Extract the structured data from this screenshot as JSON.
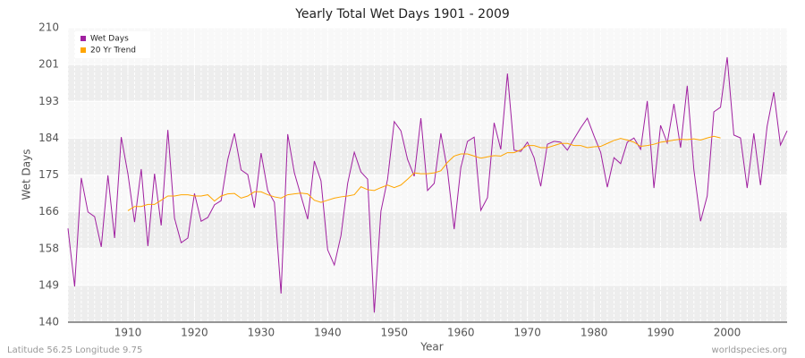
{
  "chart_data": {
    "type": "line",
    "title": "Yearly Total Wet Days 1901 - 2009",
    "xlabel": "Year",
    "ylabel": "Wet Days",
    "footer_left": "Latitude 56.25 Longitude 9.75",
    "footer_right": "worldspecies.org",
    "xlim": [
      1901,
      2009
    ],
    "ylim": [
      140,
      210
    ],
    "xticks": [
      1910,
      1920,
      1930,
      1940,
      1950,
      1960,
      1970,
      1980,
      1990,
      2000
    ],
    "yticks": [
      140,
      {
        "value": 148.75,
        "label": "149"
      },
      {
        "value": 157.5,
        "label": "158"
      },
      {
        "value": 166.25,
        "label": "166"
      },
      175,
      {
        "value": 183.75,
        "label": "184"
      },
      {
        "value": 192.5,
        "label": "193"
      },
      {
        "value": 201.25,
        "label": "201"
      },
      210
    ],
    "grid": true,
    "legend": "top-left",
    "series": [
      {
        "name": "Wet Days",
        "color": "#a020a0",
        "x": [
          1901,
          1902,
          1903,
          1904,
          1905,
          1906,
          1907,
          1908,
          1909,
          1910,
          1911,
          1912,
          1913,
          1914,
          1915,
          1916,
          1917,
          1918,
          1919,
          1920,
          1921,
          1922,
          1923,
          1924,
          1925,
          1926,
          1927,
          1928,
          1929,
          1930,
          1931,
          1932,
          1933,
          1934,
          1935,
          1936,
          1937,
          1938,
          1939,
          1940,
          1941,
          1942,
          1943,
          1944,
          1945,
          1946,
          1947,
          1948,
          1949,
          1950,
          1951,
          1952,
          1953,
          1954,
          1955,
          1956,
          1957,
          1958,
          1959,
          1960,
          1961,
          1962,
          1963,
          1964,
          1965,
          1966,
          1967,
          1968,
          1969,
          1970,
          1971,
          1972,
          1973,
          1974,
          1975,
          1976,
          1977,
          1978,
          1979,
          1980,
          1981,
          1982,
          1983,
          1984,
          1985,
          1986,
          1987,
          1988,
          1989,
          1990,
          1991,
          1992,
          1993,
          1994,
          1995,
          1996,
          1997,
          1998,
          1999,
          2000,
          2001,
          2002,
          2003,
          2004,
          2005,
          2006,
          2007,
          2008,
          2009
        ],
        "values": [
          162.3,
          148.5,
          174.3,
          166.2,
          165.1,
          157.9,
          174.9,
          160,
          184,
          175.3,
          163.8,
          176.4,
          158.1,
          175.3,
          163,
          185.7,
          164.7,
          158.9,
          160,
          170.6,
          164,
          164.9,
          167.9,
          168.9,
          178.7,
          184.9,
          176.2,
          175.1,
          167.2,
          180.2,
          171.3,
          168.5,
          146.8,
          184.7,
          175.5,
          170,
          164.5,
          178.3,
          173.6,
          157.2,
          153.6,
          160.6,
          173,
          180.4,
          175.7,
          174,
          142.3,
          166.4,
          174,
          187.7,
          185.5,
          178.7,
          174.7,
          188.5,
          171.3,
          173,
          184.9,
          176,
          162.1,
          176.8,
          183,
          184,
          166.6,
          169.6,
          187.4,
          181.1,
          199.1,
          180.9,
          180.6,
          182.8,
          179.1,
          172.3,
          182.3,
          183,
          182.8,
          180.9,
          183.6,
          186.2,
          188.5,
          184.3,
          180.4,
          172.1,
          179.1,
          177.7,
          182.8,
          183.8,
          181.1,
          192.6,
          171.9,
          186.8,
          182.6,
          191.9,
          181.5,
          196.2,
          176.2,
          164,
          170,
          190,
          191.1,
          203,
          184.5,
          183.8,
          171.9,
          184.9,
          172.6,
          186.6,
          194.7,
          182.1,
          185.5
        ]
      },
      {
        "name": "20 Yr Trend",
        "color": "#ffa500",
        "x": [
          1910,
          1911,
          1912,
          1913,
          1914,
          1915,
          1916,
          1917,
          1918,
          1919,
          1920,
          1921,
          1922,
          1923,
          1924,
          1925,
          1926,
          1927,
          1928,
          1929,
          1930,
          1931,
          1932,
          1933,
          1934,
          1935,
          1936,
          1937,
          1938,
          1939,
          1940,
          1941,
          1942,
          1943,
          1944,
          1945,
          1946,
          1947,
          1948,
          1949,
          1950,
          1951,
          1952,
          1953,
          1954,
          1955,
          1956,
          1957,
          1958,
          1959,
          1960,
          1961,
          1962,
          1963,
          1964,
          1965,
          1966,
          1967,
          1968,
          1969,
          1970,
          1971,
          1972,
          1973,
          1974,
          1975,
          1976,
          1977,
          1978,
          1979,
          1980,
          1981,
          1982,
          1983,
          1984,
          1985,
          1986,
          1987,
          1988,
          1989,
          1990,
          1991,
          1992,
          1993,
          1994,
          1995,
          1996,
          1997,
          1998,
          1999
        ],
        "values": [
          166.5,
          167.5,
          167.5,
          168,
          168,
          169,
          170,
          170,
          170.3,
          170.3,
          170,
          170,
          170.3,
          168.8,
          170,
          170.5,
          170.6,
          169.5,
          170,
          171,
          171,
          170.3,
          169.8,
          169.5,
          170.3,
          170.5,
          170.7,
          170.5,
          169,
          168.5,
          169,
          169.5,
          169.8,
          170,
          170.3,
          172.2,
          171.5,
          171.3,
          172,
          172.6,
          172,
          172.6,
          174,
          175.5,
          175.3,
          175.3,
          175.5,
          176,
          178,
          179.5,
          180,
          180,
          179.5,
          179,
          179.3,
          179.6,
          179.5,
          180.3,
          180.3,
          181,
          182,
          182,
          181.5,
          181.5,
          182,
          182.5,
          182.5,
          182,
          182,
          181.5,
          181.7,
          181.8,
          182.5,
          183.2,
          183.7,
          183.3,
          182.8,
          181.8,
          182,
          182.3,
          182.8,
          183,
          183.3,
          183.5,
          183.4,
          183.6,
          183.3,
          183.8,
          184.2,
          183.8
        ]
      }
    ]
  }
}
